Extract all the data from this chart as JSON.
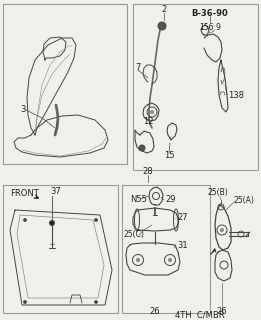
{
  "bg_color": "#f0f0eb",
  "box_color": "#999999",
  "line_color": "#444444",
  "dark_color": "#222222",
  "gray_color": "#888888",
  "labels": {
    "l2": "2",
    "l3": "3",
    "l7": "7",
    "l9": "9",
    "l12": "12",
    "l15": "15",
    "l26": "26",
    "l26b": "26",
    "l27": "27",
    "l28": "28",
    "l29": "29",
    "l31": "31",
    "l37": "37",
    "l138": "138",
    "l156": "156",
    "lref": "B-36-90",
    "lfront": "FRONT",
    "ln55": "N55",
    "l25a": "25(A)",
    "l25b": "25(B)",
    "l25c": "25(C)",
    "lfooter": "4TH  C/MBR"
  },
  "layout": {
    "fig_w": 2.61,
    "fig_h": 3.2,
    "dpi": 100
  }
}
